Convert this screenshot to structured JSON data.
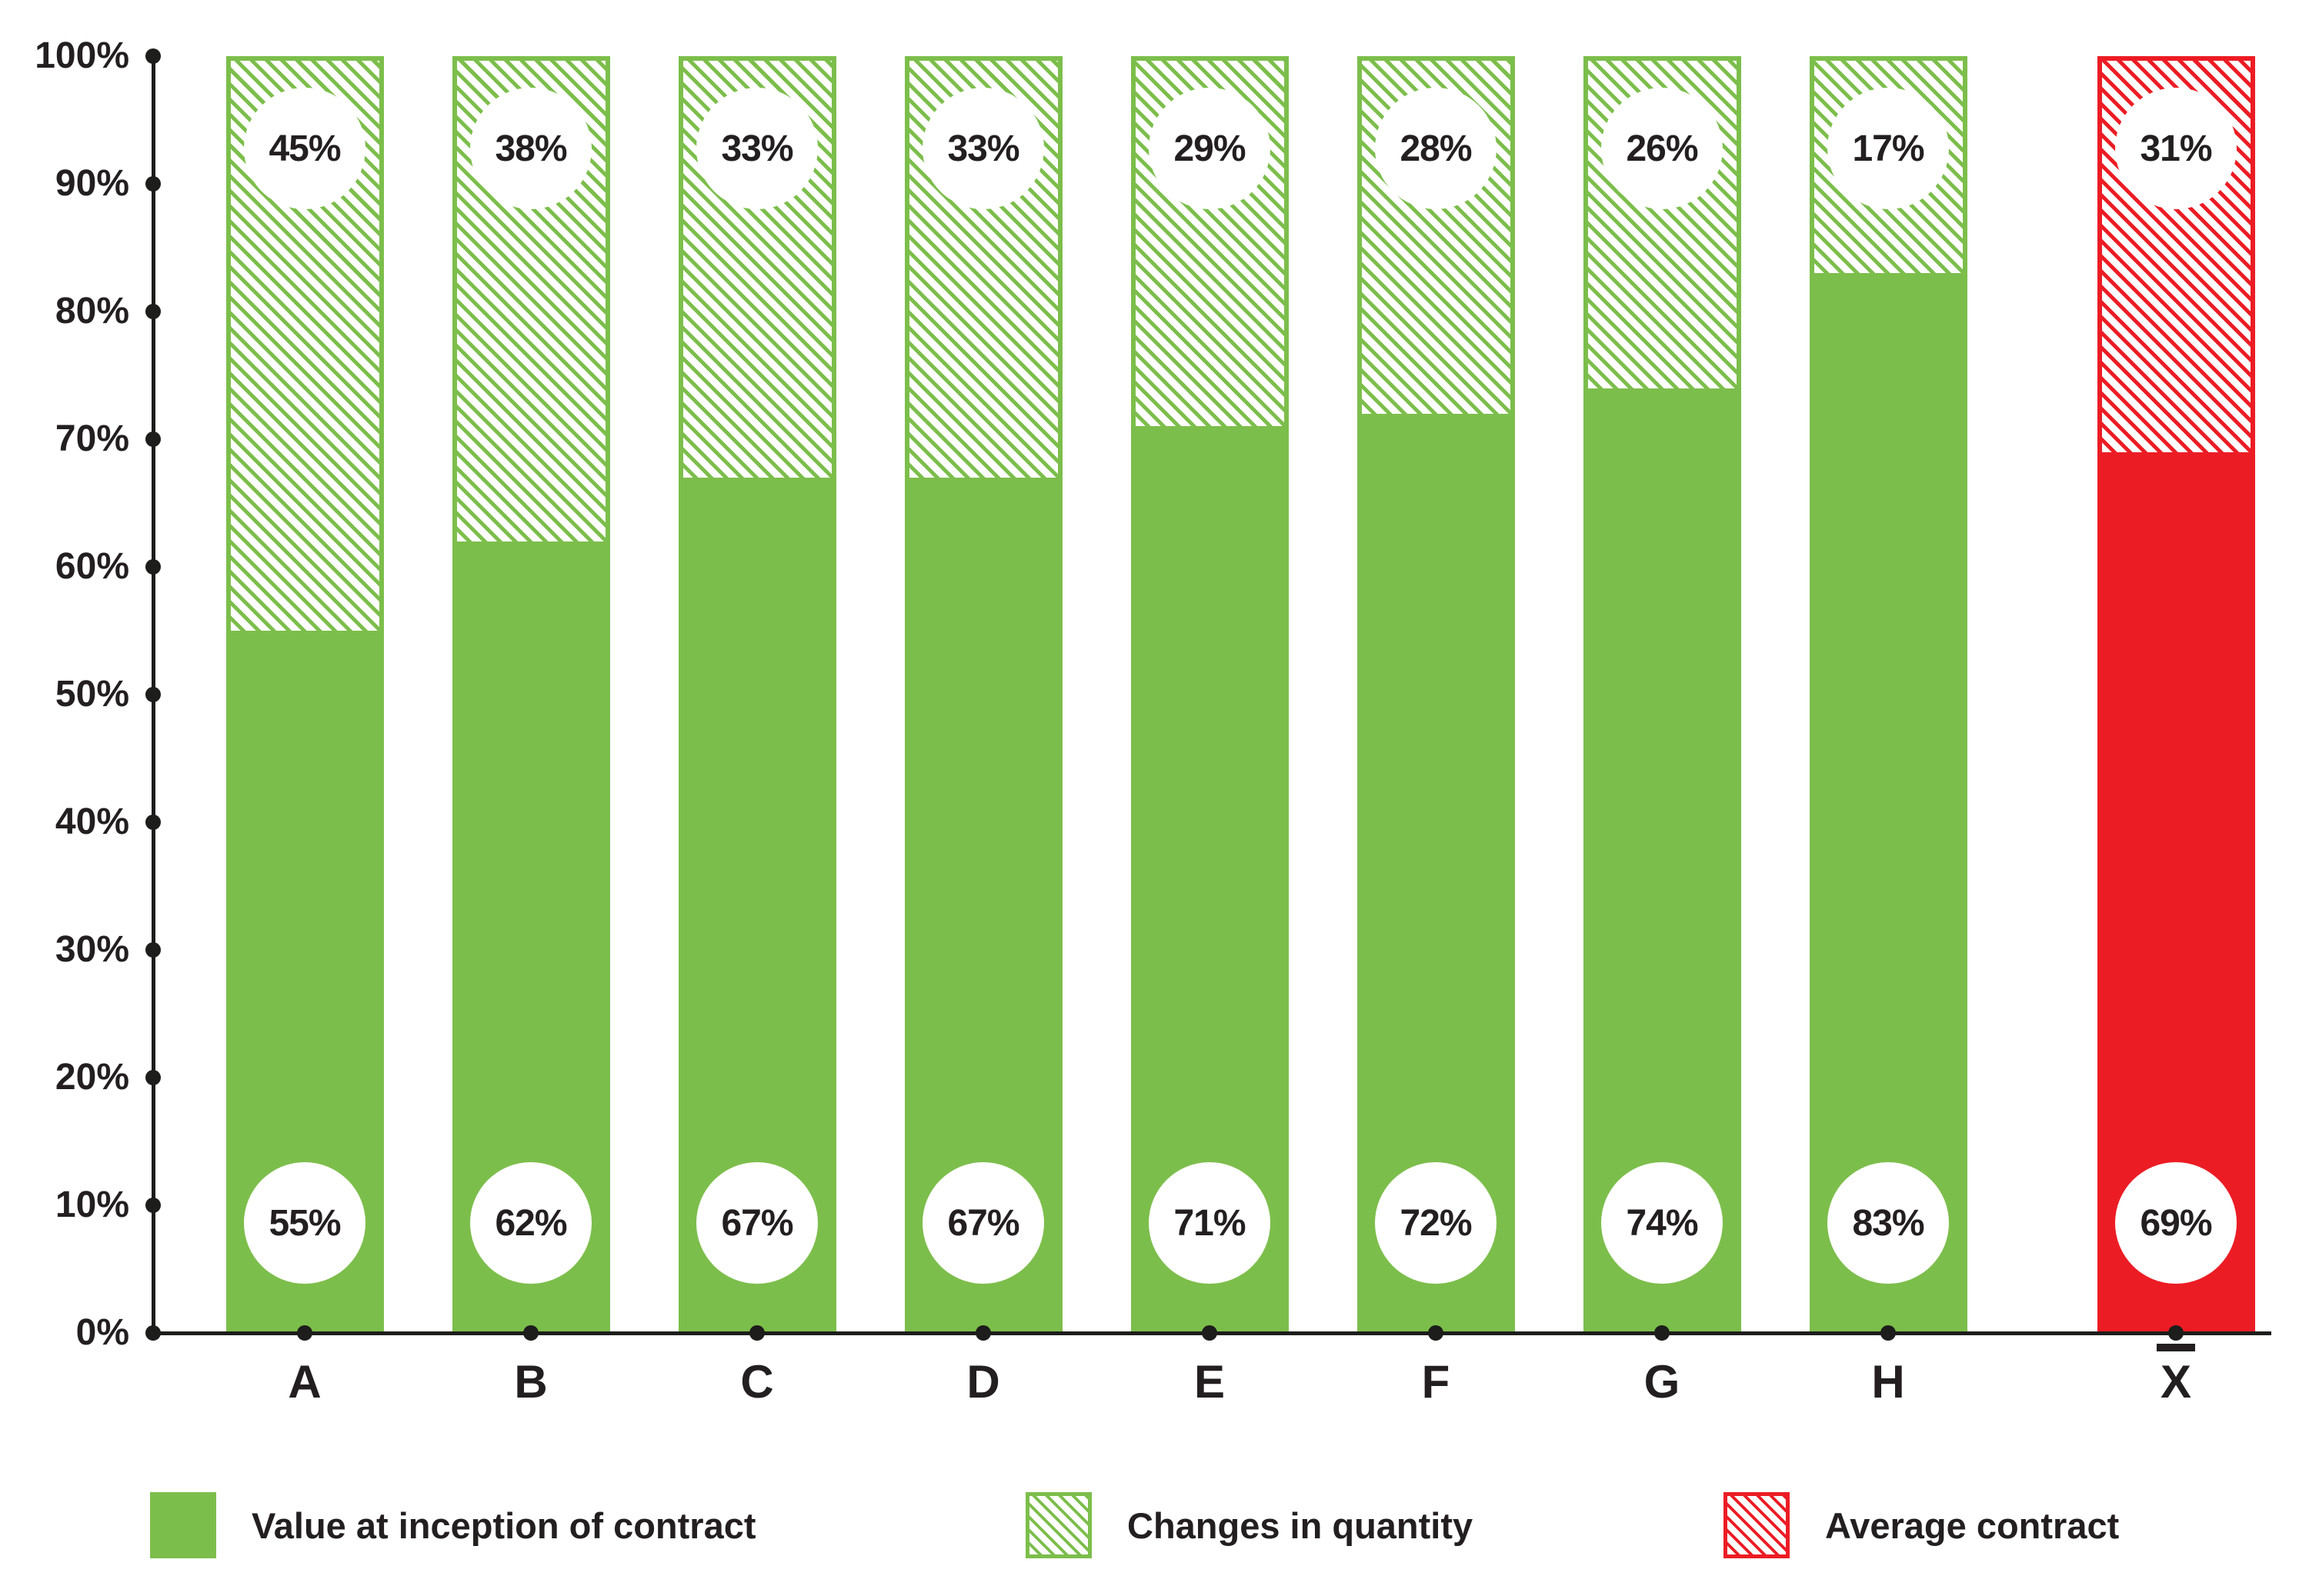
{
  "colors": {
    "green": "#7CBE4B",
    "red": "#EC1C24",
    "ink": "#231F20",
    "axis": "#1D1D1B"
  },
  "chart_data": {
    "type": "bar",
    "stacked": true,
    "title": "",
    "xlabel": "",
    "ylabel": "",
    "ylim": [
      0,
      100
    ],
    "grid": false,
    "y_tick_labels": [
      "0%",
      "10%",
      "20%",
      "30%",
      "40%",
      "50%",
      "60%",
      "70%",
      "80%",
      "90%",
      "100%"
    ],
    "categories": [
      "A",
      "B",
      "C",
      "D",
      "E",
      "F",
      "G",
      "H",
      "X̄"
    ],
    "series": [
      {
        "name": "Value at inception of contract",
        "style": "solid",
        "values": [
          55,
          62,
          67,
          67,
          71,
          72,
          74,
          83,
          69
        ]
      },
      {
        "name": "Changes in quantity",
        "style": "hatched",
        "values": [
          45,
          38,
          33,
          33,
          29,
          28,
          26,
          17,
          31
        ]
      }
    ],
    "bars": [
      {
        "category": "A",
        "solid_pct": 55,
        "hatched_pct": 45,
        "solid_label": "55%",
        "hatched_label": "45%",
        "color_key": "green",
        "is_mean": false
      },
      {
        "category": "B",
        "solid_pct": 62,
        "hatched_pct": 38,
        "solid_label": "62%",
        "hatched_label": "38%",
        "color_key": "green",
        "is_mean": false
      },
      {
        "category": "C",
        "solid_pct": 67,
        "hatched_pct": 33,
        "solid_label": "67%",
        "hatched_label": "33%",
        "color_key": "green",
        "is_mean": false
      },
      {
        "category": "D",
        "solid_pct": 67,
        "hatched_pct": 33,
        "solid_label": "67%",
        "hatched_label": "33%",
        "color_key": "green",
        "is_mean": false
      },
      {
        "category": "E",
        "solid_pct": 71,
        "hatched_pct": 29,
        "solid_label": "71%",
        "hatched_label": "29%",
        "color_key": "green",
        "is_mean": false
      },
      {
        "category": "F",
        "solid_pct": 72,
        "hatched_pct": 28,
        "solid_label": "72%",
        "hatched_label": "28%",
        "color_key": "green",
        "is_mean": false
      },
      {
        "category": "G",
        "solid_pct": 74,
        "hatched_pct": 26,
        "solid_label": "74%",
        "hatched_label": "26%",
        "color_key": "green",
        "is_mean": false
      },
      {
        "category": "H",
        "solid_pct": 83,
        "hatched_pct": 17,
        "solid_label": "83%",
        "hatched_label": "17%",
        "color_key": "green",
        "is_mean": false
      },
      {
        "category": "X̄",
        "solid_pct": 69,
        "hatched_pct": 31,
        "solid_label": "69%",
        "hatched_label": "31%",
        "color_key": "red",
        "is_mean": true
      }
    ],
    "legend": [
      {
        "label": "Value at inception of contract",
        "swatch": "solid-green"
      },
      {
        "label": "Changes in quantity",
        "swatch": "hatch-green"
      },
      {
        "label": "Average contract",
        "swatch": "hatch-red"
      }
    ],
    "legend_position": "bottom"
  }
}
